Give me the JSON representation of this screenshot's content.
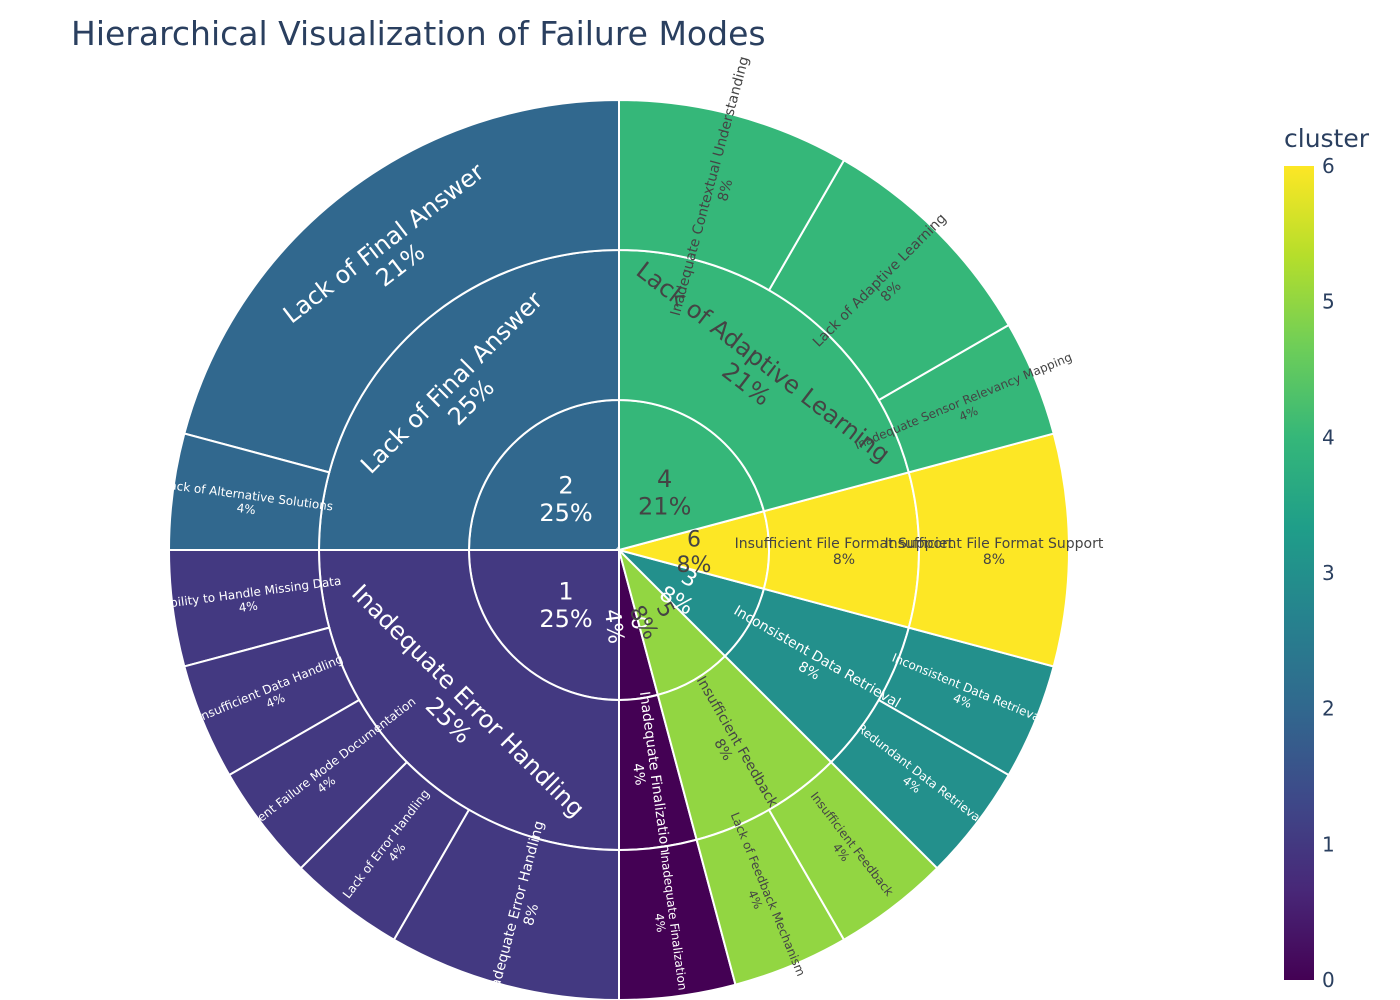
{
  "chart_data": {
    "type": "sunburst",
    "title": "Hierarchical Visualization of Failure Modes",
    "colorbar": {
      "title": "cluster",
      "range": [
        0,
        6
      ],
      "ticks": [
        "0",
        "1",
        "2",
        "3",
        "4",
        "5",
        "6"
      ]
    },
    "colorscale": "Viridis",
    "nodes": [
      {
        "id": "c2",
        "label": "2",
        "percent": "25%",
        "cluster": 2,
        "value": 6,
        "children": [
          {
            "id": "c2-lfa",
            "label": "Lack of Final Answer",
            "percent": "25%",
            "cluster": 2,
            "value": 6,
            "children": [
              {
                "id": "c2-lfa-lfa",
                "label": "Lack of Final Answer",
                "percent": "21%",
                "cluster": 2,
                "value": 5
              },
              {
                "id": "c2-lfa-las",
                "label": "Lack of Alternative Solutions",
                "percent": "4%",
                "cluster": 2,
                "value": 1
              }
            ]
          }
        ]
      },
      {
        "id": "c1",
        "label": "1",
        "percent": "25%",
        "cluster": 1,
        "value": 6,
        "children": [
          {
            "id": "c1-ieh",
            "label": "Inadequate Error Handling",
            "percent": "25%",
            "cluster": 1,
            "value": 6,
            "children": [
              {
                "id": "c1-ieh-ihmd",
                "label": "Inability to Handle Missing Data",
                "percent": "4%",
                "cluster": 1,
                "value": 1
              },
              {
                "id": "c1-ieh-idh",
                "label": "Insufficient Data Handling",
                "percent": "4%",
                "cluster": 1,
                "value": 1
              },
              {
                "id": "c1-ieh-ifmd",
                "label": "Insufficient Failure Mode Documentation",
                "percent": "4%",
                "cluster": 1,
                "value": 1
              },
              {
                "id": "c1-ieh-leh",
                "label": "Lack of Error Handling",
                "percent": "4%",
                "cluster": 1,
                "value": 1
              },
              {
                "id": "c1-ieh-ieh",
                "label": "Inadequate Error Handling",
                "percent": "8%",
                "cluster": 1,
                "value": 2
              }
            ]
          }
        ]
      },
      {
        "id": "c0",
        "label": "0",
        "percent": "4%",
        "cluster": 0,
        "value": 1,
        "children": [
          {
            "id": "c0-if",
            "label": "Inadequate Finalization",
            "percent": "4%",
            "cluster": 0,
            "value": 1,
            "children": [
              {
                "id": "c0-if-if",
                "label": "Inadequate Finalization",
                "percent": "4%",
                "cluster": 0,
                "value": 1
              }
            ]
          }
        ]
      },
      {
        "id": "c5",
        "label": "5",
        "percent": "8%",
        "cluster": 5,
        "value": 2,
        "children": [
          {
            "id": "c5-if",
            "label": "Insufficient Feedback",
            "percent": "8%",
            "cluster": 5,
            "value": 2,
            "children": [
              {
                "id": "c5-if-lfm",
                "label": "Lack of Feedback Mechanism",
                "percent": "4%",
                "cluster": 5,
                "value": 1
              },
              {
                "id": "c5-if-if",
                "label": "Insufficient Feedback",
                "percent": "4%",
                "cluster": 5,
                "value": 1
              }
            ]
          }
        ]
      },
      {
        "id": "c3",
        "label": "3",
        "percent": "8%",
        "cluster": 3,
        "value": 2,
        "children": [
          {
            "id": "c3-idr",
            "label": "Inconsistent Data Retrieval",
            "percent": "8%",
            "cluster": 3,
            "value": 2,
            "children": [
              {
                "id": "c3-idr-rdr",
                "label": "Redundant Data Retrieval",
                "percent": "4%",
                "cluster": 3,
                "value": 1
              },
              {
                "id": "c3-idr-idr",
                "label": "Inconsistent Data Retrieval",
                "percent": "4%",
                "cluster": 3,
                "value": 1
              }
            ]
          }
        ]
      },
      {
        "id": "c6",
        "label": "6",
        "percent": "8%",
        "cluster": 6,
        "value": 2,
        "children": [
          {
            "id": "c6-iffs",
            "label": "Insufficient File Format Support",
            "percent": "8%",
            "cluster": 6,
            "value": 2,
            "children": [
              {
                "id": "c6-iffs-iffs",
                "label": "Insufficient File Format Support",
                "percent": "8%",
                "cluster": 6,
                "value": 2
              }
            ]
          }
        ]
      },
      {
        "id": "c4",
        "label": "4",
        "percent": "21%",
        "cluster": 4,
        "value": 5,
        "children": [
          {
            "id": "c4-lal",
            "label": "Lack of Adaptive Learning",
            "percent": "21%",
            "cluster": 4,
            "value": 5,
            "children": [
              {
                "id": "c4-lal-isrm",
                "label": "Inadequate Sensor Relevancy Mapping",
                "percent": "4%",
                "cluster": 4,
                "value": 1
              },
              {
                "id": "c4-lal-lal",
                "label": "Lack of Adaptive Learning",
                "percent": "8%",
                "cluster": 4,
                "value": 2
              },
              {
                "id": "c4-lal-icu",
                "label": "Inadequate Contextual Understanding",
                "percent": "8%",
                "cluster": 4,
                "value": 2
              }
            ]
          }
        ]
      }
    ]
  }
}
